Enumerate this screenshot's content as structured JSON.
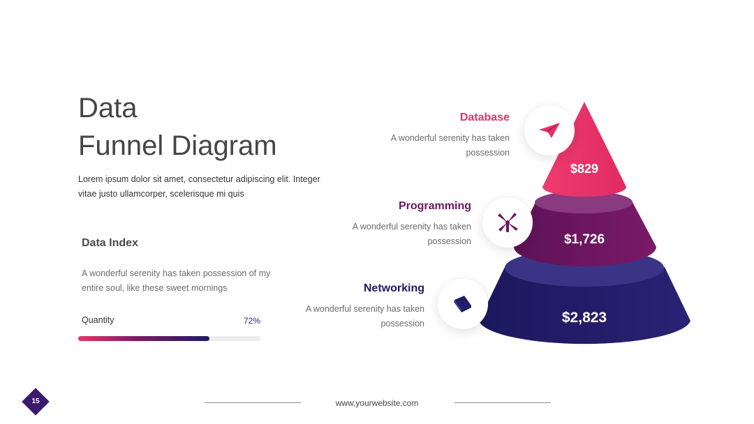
{
  "slide": {
    "title_line1": "Data",
    "title_line2": "Funnel Diagram",
    "intro": "Lorem ipsum dolor sit amet, consectetur adipiscing elit. Integer vitae justo ullamcorper, scelerisque mi quis"
  },
  "data_index": {
    "title": "Data Index",
    "description": "A wonderful serenity has taken possession of my entire soul, like these sweet mornings",
    "quantity_label": "Quantity",
    "quantity_percent_text": "72%",
    "quantity_fraction": 0.72
  },
  "funnel": {
    "levels": [
      {
        "name": "Database",
        "description": "A wonderful serenity has taken possession",
        "value": "$829",
        "icon": "paper-plane-icon",
        "color": "#e8316a"
      },
      {
        "name": "Programming",
        "description": "A wonderful serenity has taken possession",
        "value": "$1,726",
        "icon": "windmill-icon",
        "color": "#6b1660"
      },
      {
        "name": "Networking",
        "description": "A wonderful serenity has taken possession",
        "value": "$2,823",
        "icon": "book-icon",
        "color": "#221d6a"
      }
    ]
  },
  "footer": {
    "website": "www,yourwebsite.com",
    "page_number": "15"
  },
  "colors": {
    "pink": "#e8316a",
    "purple": "#6b1660",
    "navy": "#221d6a",
    "page_badge": "#3b1a6e"
  }
}
